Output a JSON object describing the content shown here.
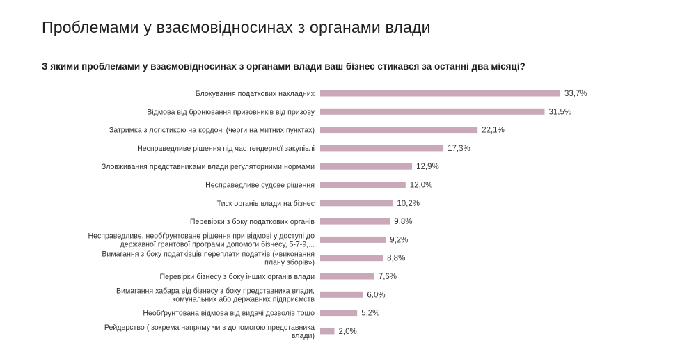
{
  "page": {
    "title": "Проблемами у взаємовідносинах з органами влади"
  },
  "chart_data": {
    "type": "bar",
    "orientation": "horizontal",
    "title": "З якими проблемами у взаємовідносинах з органами влади ваш бізнес стикався за останні два місяці?",
    "categories": [
      [
        "Блокування податкових накладних"
      ],
      [
        "Відмова від бронювання призовників від призову"
      ],
      [
        "Затримка з логістикою на кордоні (черги на митних пунктах)"
      ],
      [
        "Несправедливе рішення під час тендерної закупівлі"
      ],
      [
        "Зловживання представниками влади регуляторними нормами"
      ],
      [
        "Несправедливе судове рішення"
      ],
      [
        "Тиск органів влади на бізнес"
      ],
      [
        "Перевірки з боку податкових органів"
      ],
      [
        "Несправедливе, необґрунтоване рішення при відмові у доступі до",
        "державної грантової програми допомоги бізнесу, 5-7-9,..."
      ],
      [
        "Вимагання з боку податківців переплати податків («виконання",
        "плану зборів»)"
      ],
      [
        "Перевірки бізнесу з боку інших органів влади"
      ],
      [
        "Вимагання хабара від бізнесу з боку представника влади,",
        "комунальних або державних підприємств"
      ],
      [
        "Необґрунтована відмова від видачі дозволів тощо"
      ],
      [
        "Рейдерство ( зокрема напряму чи з допомогою представника",
        "влади)"
      ]
    ],
    "values": [
      33.7,
      31.5,
      22.1,
      17.3,
      12.9,
      12.0,
      10.2,
      9.8,
      9.2,
      8.8,
      7.6,
      6.0,
      5.2,
      2.0
    ],
    "value_labels": [
      "33,7%",
      "31,5%",
      "22,1%",
      "17,3%",
      "12,9%",
      "12,0%",
      "10,2%",
      "9,8%",
      "9,2%",
      "8,8%",
      "7,6%",
      "6,0%",
      "5,2%",
      "2,0%"
    ],
    "unit": "%",
    "xlim": [
      0,
      33.7
    ],
    "bar_color": "#c9a9b9",
    "grid": false,
    "legend": "none"
  }
}
